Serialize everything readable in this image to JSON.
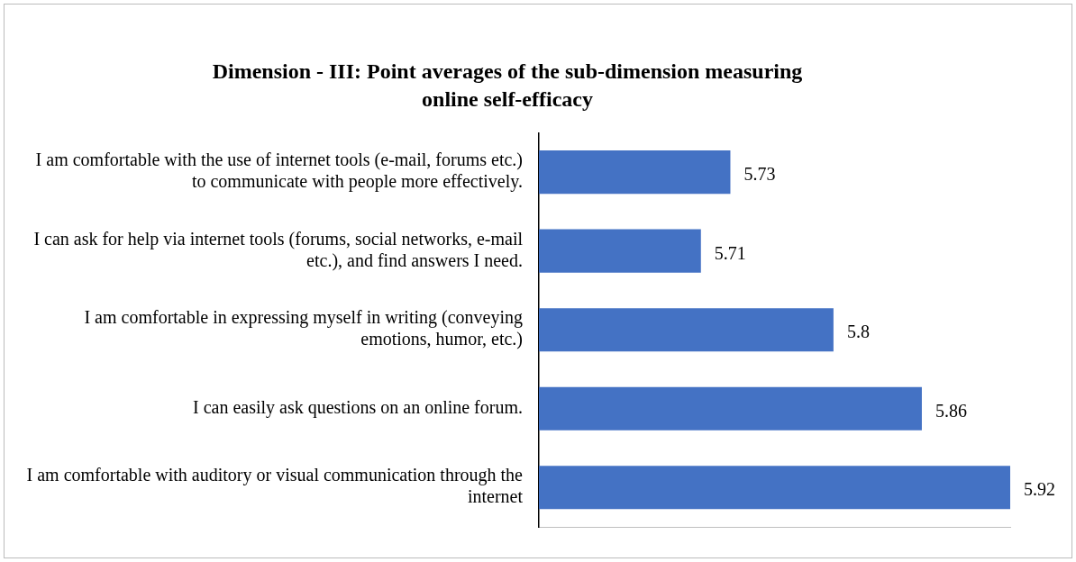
{
  "chart_data": {
    "type": "bar",
    "orientation": "horizontal",
    "title": "Dimension - III: Point averages of the sub-dimension measuring online self-efficacy",
    "categories": [
      "I am comfortable with the use of internet tools (e-mail, forums etc.) to communicate with people more effectively.",
      "I can ask for help via internet tools (forums, social networks, e-mail etc.), and find answers I need.",
      "I am comfortable in expressing myself in writing (conveying emotions, humor, etc.)",
      "I can easily ask questions on an online forum.",
      "I am comfortable with auditory or visual communication through the internet"
    ],
    "values": [
      5.73,
      5.71,
      5.8,
      5.86,
      5.92
    ],
    "color": "#4472c4",
    "xlim": [
      5.6,
      5.92
    ],
    "data_labels": true,
    "legend": false,
    "tick_labels": "y"
  }
}
